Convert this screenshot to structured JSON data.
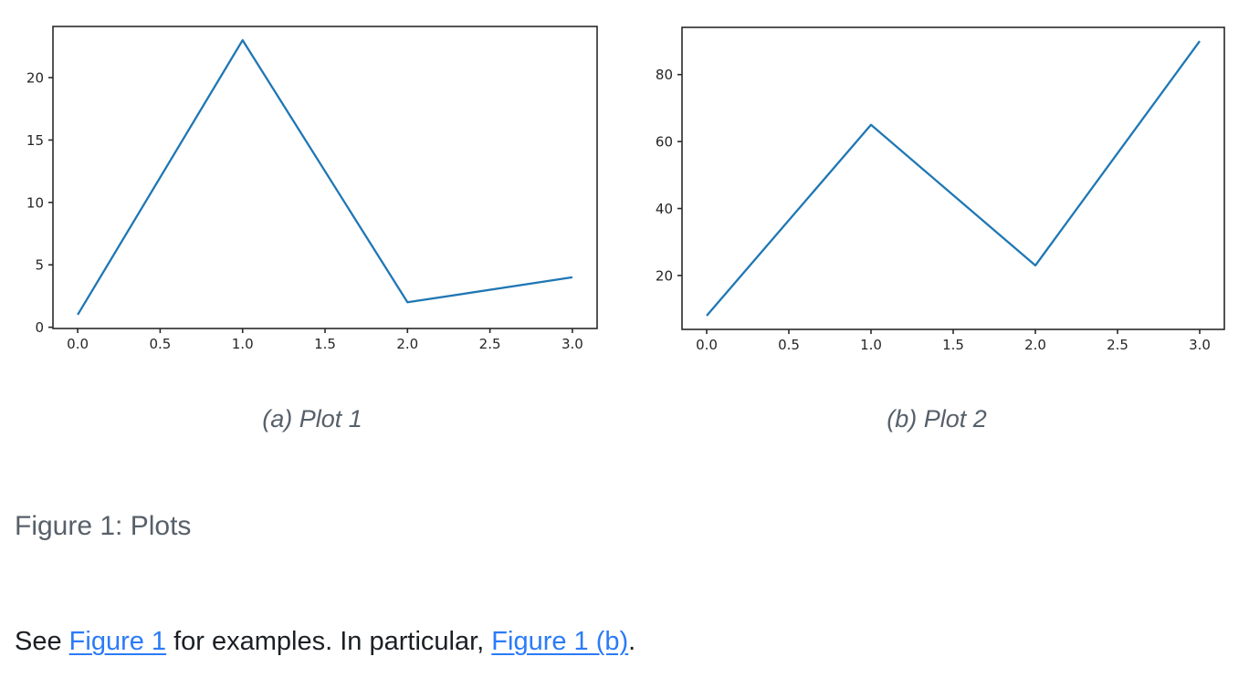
{
  "figure": {
    "caption": "Figure 1: Plots",
    "subfigures": [
      {
        "label": "(a) Plot 1"
      },
      {
        "label": "(b) Plot 2"
      }
    ]
  },
  "paragraph": {
    "text_before_link1": "See ",
    "link1": "Figure 1",
    "text_between_links": " for examples. In particular, ",
    "link2": "Figure 1 (b)",
    "text_after_link2": "."
  },
  "colors": {
    "line": "#1f77b4",
    "axis": "#2a2a2a",
    "tick_text": "#262626",
    "caption_text": "#57606a",
    "body_text": "#1b1f24",
    "link": "#2b7bf8",
    "background": "#ffffff"
  },
  "chart_data": [
    {
      "type": "line",
      "title": "(a) Plot 1",
      "x": [
        0,
        1,
        2,
        3
      ],
      "y": [
        1,
        23,
        2,
        4
      ],
      "xlim": [
        -0.15,
        3.15
      ],
      "ylim": [
        -0.1,
        24.1
      ],
      "x_ticks": [
        0,
        0.5,
        1,
        1.5,
        2,
        2.5,
        3
      ],
      "x_tick_labels": [
        "0.0",
        "0.5",
        "1.0",
        "1.5",
        "2.0",
        "2.5",
        "3.0"
      ],
      "y_ticks": [
        0,
        5,
        10,
        15,
        20
      ],
      "y_tick_labels": [
        "0",
        "5",
        "10",
        "15",
        "20"
      ],
      "line_color": "#1f77b4",
      "grid": false,
      "legend": null,
      "xlabel": "",
      "ylabel": ""
    },
    {
      "type": "line",
      "title": "(b) Plot 2",
      "x": [
        0,
        1,
        2,
        3
      ],
      "y": [
        8,
        65,
        23,
        90
      ],
      "xlim": [
        -0.15,
        3.15
      ],
      "ylim": [
        3.9,
        94.1
      ],
      "x_ticks": [
        0,
        0.5,
        1,
        1.5,
        2,
        2.5,
        3
      ],
      "x_tick_labels": [
        "0.0",
        "0.5",
        "1.0",
        "1.5",
        "2.0",
        "2.5",
        "3.0"
      ],
      "y_ticks": [
        20,
        40,
        60,
        80
      ],
      "y_tick_labels": [
        "20",
        "40",
        "60",
        "80"
      ],
      "line_color": "#1f77b4",
      "grid": false,
      "legend": null,
      "xlabel": "",
      "ylabel": ""
    }
  ]
}
